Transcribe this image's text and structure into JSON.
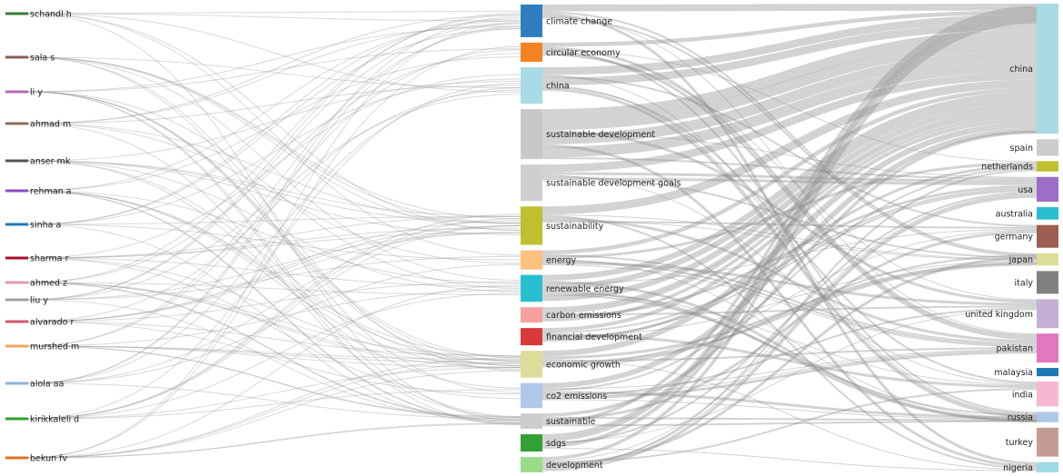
{
  "sankey": {
    "authors": [
      {
        "label": "schandl h",
        "color": "#3b7d3b"
      },
      {
        "label": "sala s",
        "color": "#8c5a5a"
      },
      {
        "label": "li y",
        "color": "#b56bb5"
      },
      {
        "label": "ahmad m",
        "color": "#8c6d5c"
      },
      {
        "label": "anser mk",
        "color": "#555555"
      },
      {
        "label": "rehman a",
        "color": "#8b4fc7"
      },
      {
        "label": "sinha a",
        "color": "#1f77b4"
      },
      {
        "label": "sharma r",
        "color": "#a8102b"
      },
      {
        "label": "ahmed z",
        "color": "#e39bb0"
      },
      {
        "label": "liu y",
        "color": "#a0a0a0"
      },
      {
        "label": "alvarado r",
        "color": "#d55a6a"
      },
      {
        "label": "murshed m",
        "color": "#f4a55f"
      },
      {
        "label": "alola aa",
        "color": "#8fb0d8"
      },
      {
        "label": "kirikkaleli d",
        "color": "#2ca02c"
      },
      {
        "label": "bekun fv",
        "color": "#e07020"
      }
    ],
    "keywords": [
      {
        "label": "climate change",
        "color": "#2f7fc0",
        "weight": 34
      },
      {
        "label": "circular economy",
        "color": "#f58220",
        "weight": 20
      },
      {
        "label": "china",
        "color": "#a9dbe4",
        "weight": 38
      },
      {
        "label": "sustainable development",
        "color": "#c8c8c8",
        "weight": 52
      },
      {
        "label": "sustainable development goals",
        "color": "#cfcfcf",
        "weight": 38
      },
      {
        "label": "sustainability",
        "color": "#bfbf30",
        "weight": 40
      },
      {
        "label": "energy",
        "color": "#ffc080",
        "weight": 20
      },
      {
        "label": "renewable energy",
        "color": "#27bfcf",
        "weight": 28
      },
      {
        "label": "carbon emissions",
        "color": "#f7a0a0",
        "weight": 16
      },
      {
        "label": "financial development",
        "color": "#d83a3a",
        "weight": 18
      },
      {
        "label": "economic growth",
        "color": "#dddd99",
        "weight": 28
      },
      {
        "label": "co2 emissions",
        "color": "#b0c8ea",
        "weight": 26
      },
      {
        "label": "sustainable",
        "color": "#cccccc",
        "weight": 16
      },
      {
        "label": "sdgs",
        "color": "#33a033",
        "weight": 18
      },
      {
        "label": "development",
        "color": "#99dd88",
        "weight": 16
      }
    ],
    "countries": [
      {
        "label": "china",
        "color": "#a9dbe4",
        "weight": 126
      },
      {
        "label": "spain",
        "color": "#cccccc",
        "weight": 16
      },
      {
        "label": "netherlands",
        "color": "#c0c030",
        "weight": 10
      },
      {
        "label": "usa",
        "color": "#9b6fc8",
        "weight": 24
      },
      {
        "label": "australia",
        "color": "#27bfcf",
        "weight": 12
      },
      {
        "label": "germany",
        "color": "#9c5e50",
        "weight": 22
      },
      {
        "label": "japan",
        "color": "#dddd99",
        "weight": 12
      },
      {
        "label": "italy",
        "color": "#7f7f7f",
        "weight": 22
      },
      {
        "label": "united kingdom",
        "color": "#c5b0d5",
        "weight": 28
      },
      {
        "label": "pakistan",
        "color": "#e377c2",
        "weight": 28
      },
      {
        "label": "malaysia",
        "color": "#1f77b4",
        "weight": 8
      },
      {
        "label": "india",
        "color": "#f7b6d2",
        "weight": 24
      },
      {
        "label": "russia",
        "color": "#aec7e8",
        "weight": 10
      },
      {
        "label": "turkey",
        "color": "#c49c94",
        "weight": 28
      },
      {
        "label": "nigeria",
        "color": "#9edae5",
        "weight": 10
      }
    ]
  }
}
